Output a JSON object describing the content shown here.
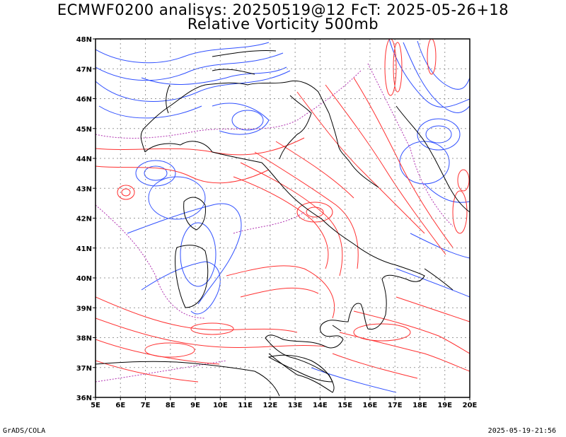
{
  "title": {
    "line1": "ECMWF0200 analisys: 20250519@12 FcT: 2025-05-26+18",
    "line2": "Relative Vorticity 500mb"
  },
  "footer": {
    "left": "GrADS/COLA",
    "right": "2025-05-19-21:56"
  },
  "map": {
    "lon_range": [
      5,
      20
    ],
    "lat_range": [
      36,
      48
    ],
    "lon_labels": [
      "5E",
      "6E",
      "7E",
      "8E",
      "9E",
      "10E",
      "11E",
      "12E",
      "13E",
      "14E",
      "15E",
      "16E",
      "17E",
      "18E",
      "19E",
      "20E"
    ],
    "lat_labels": [
      "36N",
      "37N",
      "38N",
      "39N",
      "40N",
      "41N",
      "42N",
      "43N",
      "44N",
      "45N",
      "46N",
      "47N",
      "48N"
    ],
    "grid": true,
    "colors": {
      "positive": "#ff3030",
      "negative": "#3050ff",
      "zero": "#b030b0",
      "coast": "#000000",
      "grid": "#999999"
    }
  }
}
